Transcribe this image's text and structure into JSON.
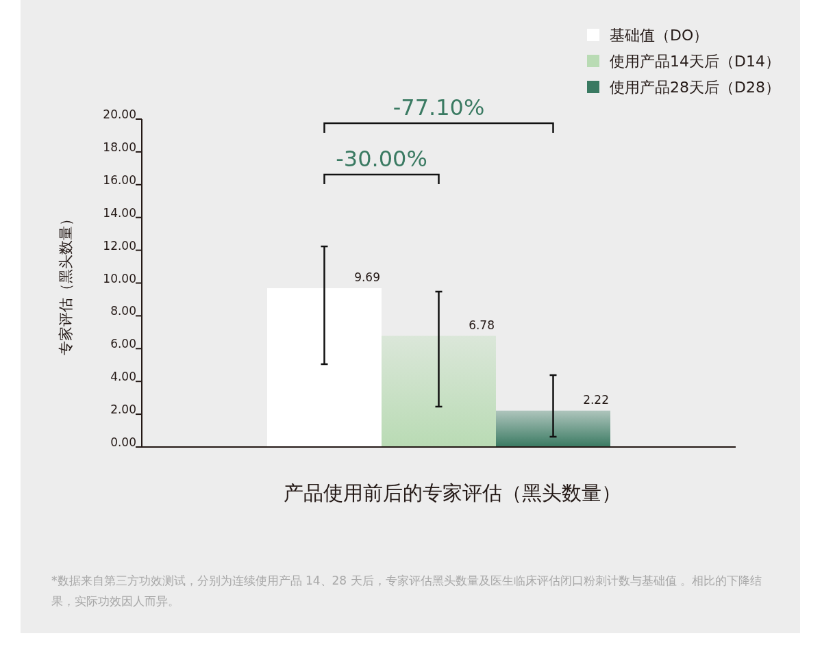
{
  "chart_data": {
    "type": "bar",
    "categories": [
      null
    ],
    "series": [
      {
        "name": "基础值（DO）",
        "color": "#ffffff",
        "values": [
          9.69
        ],
        "errors": [
          [
            5.05,
            12.23
          ]
        ]
      },
      {
        "name": "使用产品14天后（D14）",
        "color": "#b9dbb4",
        "values": [
          6.78
        ],
        "errors": [
          [
            2.46,
            9.48
          ]
        ]
      },
      {
        "name": "使用产品28天后（D28）",
        "color": "#3a7a62",
        "values": [
          2.22
        ],
        "errors": [
          [
            0.63,
            4.38
          ]
        ]
      }
    ],
    "ylim": [
      0,
      20
    ],
    "yticks": [
      {
        "value": 0,
        "label": "0.00"
      },
      {
        "value": 2,
        "label": "2.00"
      },
      {
        "value": 4,
        "label": "4.00"
      },
      {
        "value": 6,
        "label": "6.00"
      },
      {
        "value": 8,
        "label": "8.00"
      },
      {
        "value": 10,
        "label": "10.00"
      },
      {
        "value": 12,
        "label": "12.00"
      },
      {
        "value": 14,
        "label": "14.00"
      },
      {
        "value": 16,
        "label": "16.00"
      },
      {
        "value": 18,
        "label": "18.00"
      },
      {
        "value": 20,
        "label": "20.00"
      }
    ],
    "ylabel": "专家评估（黑头数量）",
    "xlabel": "产品使用前后的专家评估（黑头数量）",
    "data_labels": true,
    "legend": "top right",
    "grid": false,
    "annotations": [
      "-77.10%",
      "-30.00%",
      "*数据来自第三方功效测试，分别为连续使用产品 14、28 天后，专家评估黑头数量及医生临床评估闭口粉刺计数与基础值 。相比的下降结果，实际功效因人而异。"
    ]
  }
}
